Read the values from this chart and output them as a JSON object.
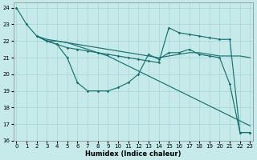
{
  "xlabel": "Humidex (Indice chaleur)",
  "background_color": "#c6eaea",
  "grid_color": "#a8d4d4",
  "line_color": "#1a7070",
  "xlim_min": -0.3,
  "xlim_max": 23.3,
  "ylim_min": 16,
  "ylim_max": 24.3,
  "yticks": [
    16,
    17,
    18,
    19,
    20,
    21,
    22,
    23,
    24
  ],
  "xticks": [
    0,
    1,
    2,
    3,
    4,
    5,
    6,
    7,
    8,
    9,
    10,
    11,
    12,
    13,
    14,
    15,
    16,
    17,
    18,
    19,
    20,
    21,
    22,
    23
  ],
  "line1_x": [
    0,
    1,
    2,
    3,
    4,
    5,
    6,
    7,
    8,
    9,
    10,
    11,
    12,
    13,
    14,
    15,
    16,
    17,
    18,
    19,
    20,
    21,
    22,
    23
  ],
  "line1_y": [
    24.0,
    23.0,
    22.3,
    22.0,
    21.8,
    21.0,
    19.5,
    19.0,
    19.0,
    19.0,
    19.2,
    19.5,
    20.0,
    21.2,
    20.9,
    21.3,
    21.3,
    21.5,
    21.2,
    21.1,
    21.0,
    19.4,
    16.5,
    16.5
  ],
  "line2_x": [
    2,
    3,
    4,
    5,
    6,
    7,
    8,
    9,
    10,
    11,
    12,
    13,
    14,
    15,
    16,
    17,
    18,
    19,
    20,
    21,
    22,
    23
  ],
  "line2_y": [
    22.3,
    22.0,
    22.0,
    21.9,
    21.8,
    21.7,
    21.6,
    21.5,
    21.4,
    21.3,
    21.2,
    21.1,
    21.0,
    21.1,
    21.2,
    21.3,
    21.3,
    21.2,
    21.1,
    21.1,
    21.1,
    21.0
  ],
  "line3_x": [
    2,
    3,
    4,
    5,
    6,
    7,
    8,
    9,
    10,
    11,
    12,
    13,
    14,
    15,
    16,
    17,
    18,
    19,
    20,
    21,
    22,
    23
  ],
  "line3_y": [
    22.3,
    22.1,
    22.0,
    21.9,
    21.7,
    21.5,
    21.3,
    21.1,
    20.8,
    20.5,
    20.2,
    19.9,
    19.6,
    19.3,
    19.0,
    18.7,
    18.4,
    18.1,
    17.8,
    17.5,
    17.2,
    16.9
  ],
  "line4_x": [
    2,
    3,
    4,
    5,
    6,
    7,
    8,
    9,
    10,
    11,
    12,
    13,
    14,
    15,
    16,
    17,
    18,
    19,
    20,
    21,
    22,
    23
  ],
  "line4_y": [
    22.3,
    22.0,
    21.8,
    21.6,
    21.5,
    21.4,
    21.3,
    21.2,
    21.1,
    21.0,
    20.9,
    20.8,
    20.7,
    22.8,
    22.5,
    22.4,
    22.3,
    22.2,
    22.1,
    22.1,
    16.5,
    16.5
  ]
}
